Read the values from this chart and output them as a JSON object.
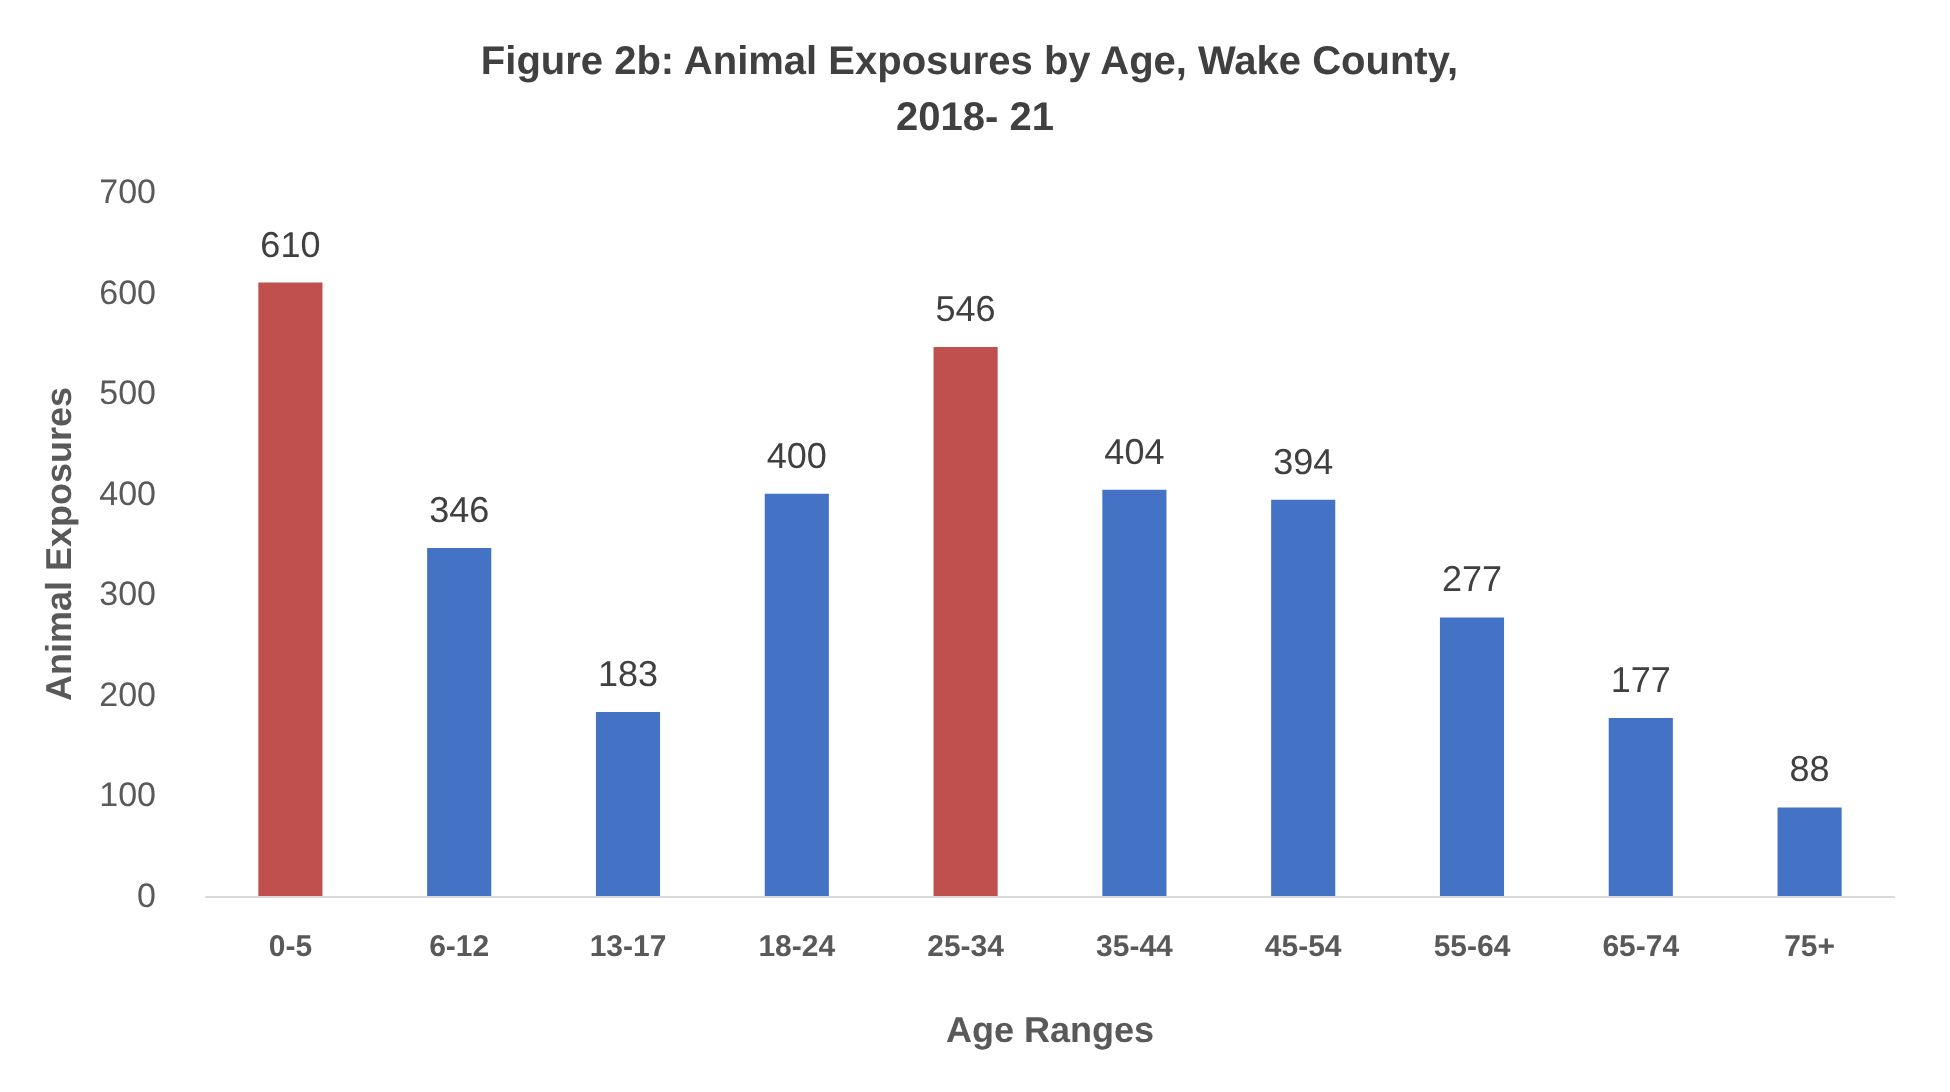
{
  "chart_data": {
    "type": "bar",
    "title": "Figure 2b: Animal Exposures by Age, Wake County, 2018- 21",
    "xlabel": "Age Ranges",
    "ylabel": "Animal Exposures",
    "categories": [
      "0-5",
      "6-12",
      "13-17",
      "18-24",
      "25-34",
      "35-44",
      "45-54",
      "55-64",
      "65-74",
      "75+"
    ],
    "values": [
      610,
      346,
      183,
      400,
      546,
      404,
      394,
      277,
      177,
      88
    ],
    "colors": [
      "#c0504d",
      "#4472c4",
      "#4472c4",
      "#4472c4",
      "#c0504d",
      "#4472c4",
      "#4472c4",
      "#4472c4",
      "#4472c4",
      "#4472c4"
    ],
    "ylim": [
      0,
      700
    ],
    "yticks": [
      0,
      100,
      200,
      300,
      400,
      500,
      600,
      700
    ],
    "grid": false,
    "data_labels": true
  }
}
